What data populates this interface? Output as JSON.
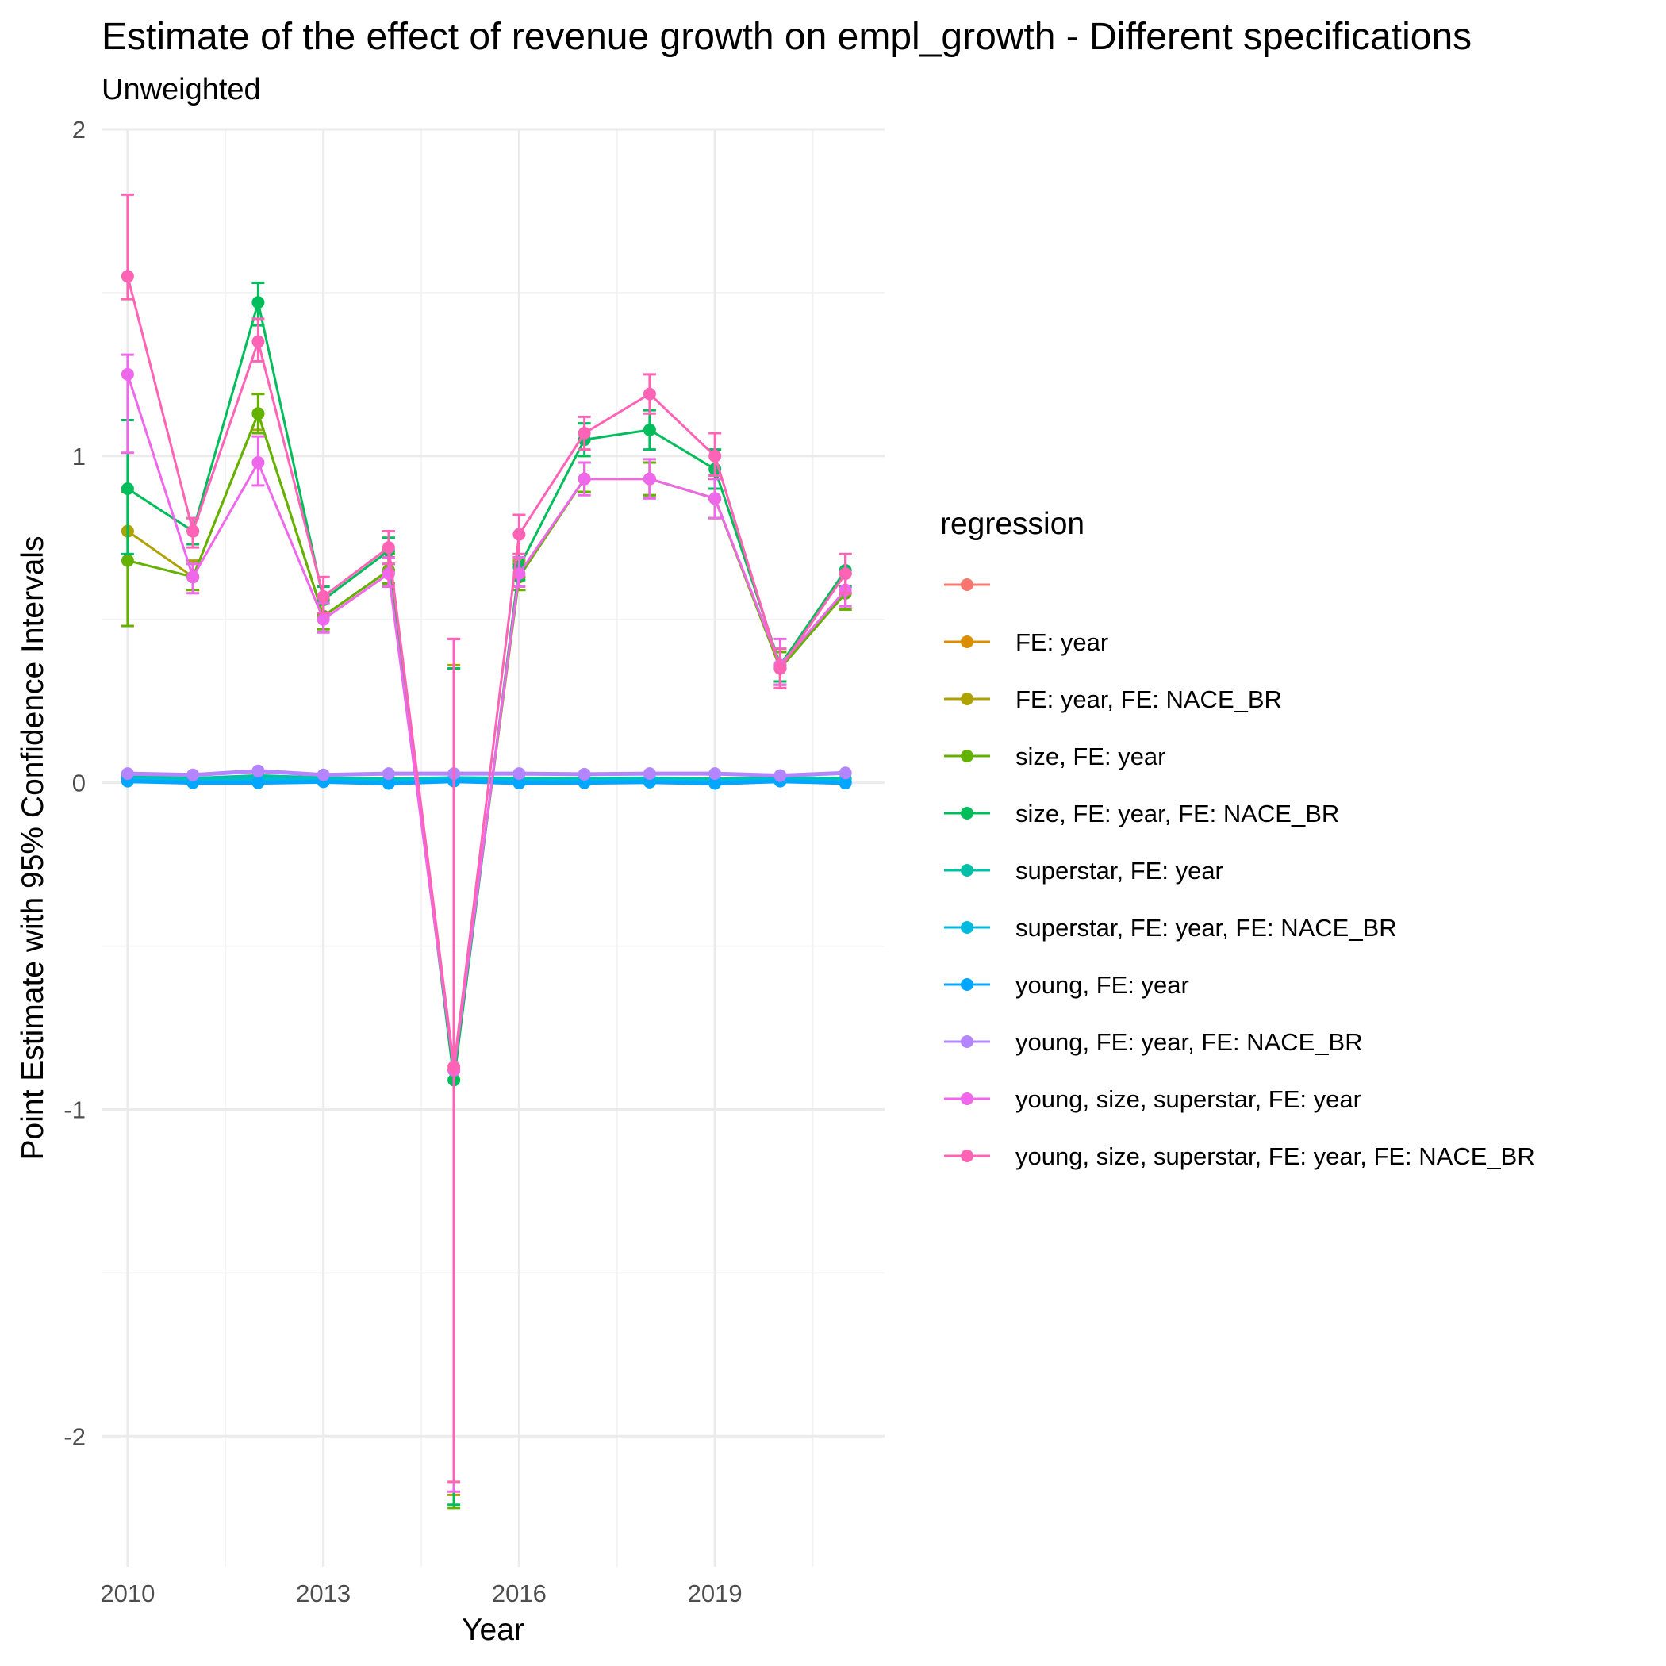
{
  "chart_data": {
    "type": "line",
    "title": "Estimate of the effect of revenue growth on empl_growth - Different specifications",
    "subtitle": "Unweighted",
    "xlabel": "Year",
    "ylabel": "Point Estimate with 95% Confidence Intervals",
    "x": [
      2010,
      2011,
      2012,
      2013,
      2014,
      2015,
      2016,
      2017,
      2018,
      2019,
      2020,
      2021
    ],
    "x_ticks": [
      "2010",
      "2013",
      "2016",
      "2019"
    ],
    "y_ticks": [
      "2",
      "1",
      "0",
      "-1",
      "-2"
    ],
    "xlim": [
      2009.6,
      2021.6
    ],
    "ylim": [
      -2.4,
      2.0
    ],
    "grid": true,
    "legend": {
      "title": "regression",
      "placement": "right"
    },
    "series": [
      {
        "name": "",
        "color": "#F8766D",
        "y": [
          0.01,
          0.003,
          0.008,
          0.005,
          0.002,
          0.006,
          0.003,
          0.004,
          0.005,
          0.002,
          0.008,
          0.003
        ],
        "lo": null,
        "hi": null
      },
      {
        "name": "FE: year",
        "color": "#DB8E00",
        "y": [
          0.011,
          0.004,
          0.009,
          0.006,
          0.003,
          0.007,
          0.004,
          0.005,
          0.006,
          0.003,
          0.009,
          0.004
        ],
        "lo": null,
        "hi": null
      },
      {
        "name": "FE: year, FE: NACE_BR",
        "color": "#AEA200",
        "y": [
          0.77,
          0.63,
          1.13,
          0.51,
          0.65,
          -0.88,
          0.63,
          0.93,
          0.93,
          0.87,
          0.35,
          0.58
        ],
        "lo": [
          null,
          0.59,
          1.08,
          0.47,
          0.61,
          -2.18,
          0.59,
          0.89,
          0.88,
          0.81,
          0.3,
          0.53
        ],
        "hi": [
          null,
          0.68,
          1.19,
          0.56,
          0.7,
          0.36,
          0.68,
          0.98,
          0.98,
          0.93,
          0.4,
          0.64
        ]
      },
      {
        "name": "size, FE: year",
        "color": "#64B200",
        "y": [
          0.68,
          0.63,
          1.13,
          0.51,
          0.65,
          -0.88,
          0.63,
          0.93,
          0.93,
          0.87,
          0.35,
          0.58
        ],
        "lo": [
          0.48,
          0.59,
          1.07,
          0.47,
          0.61,
          -2.22,
          0.59,
          0.89,
          0.88,
          0.81,
          0.3,
          0.53
        ],
        "hi": [
          0.89,
          0.67,
          1.19,
          0.55,
          0.7,
          0.35,
          0.67,
          0.98,
          0.98,
          0.93,
          0.4,
          0.64
        ]
      },
      {
        "name": "size, FE: year, FE: NACE_BR",
        "color": "#00BD5C",
        "y": [
          0.9,
          0.77,
          1.47,
          0.56,
          0.71,
          -0.91,
          0.66,
          1.05,
          1.08,
          0.96,
          0.36,
          0.65
        ],
        "lo": [
          0.7,
          0.73,
          1.4,
          0.52,
          0.67,
          -2.21,
          0.62,
          1.0,
          1.02,
          0.9,
          0.31,
          0.6
        ],
        "hi": [
          1.11,
          0.81,
          1.53,
          0.6,
          0.75,
          0.35,
          0.7,
          1.1,
          1.14,
          1.02,
          0.41,
          0.7
        ]
      },
      {
        "name": "superstar, FE: year",
        "color": "#00C1A7",
        "y": [
          0.02,
          0.012,
          0.02,
          0.014,
          0.01,
          0.014,
          0.012,
          0.012,
          0.013,
          0.01,
          0.014,
          0.012
        ],
        "lo": null,
        "hi": null
      },
      {
        "name": "superstar, FE: year, FE: NACE_BR",
        "color": "#00BADE",
        "y": [
          0.012,
          0.004,
          0.008,
          0.008,
          0.004,
          0.01,
          0.005,
          0.006,
          0.007,
          0.004,
          0.009,
          0.004
        ],
        "lo": null,
        "hi": null
      },
      {
        "name": "young, FE: year",
        "color": "#00A6FF",
        "y": [
          0.005,
          0.0,
          0.0,
          0.003,
          -0.002,
          0.005,
          -0.001,
          0.0,
          0.002,
          -0.002,
          0.005,
          -0.001
        ],
        "lo": null,
        "hi": null
      },
      {
        "name": "young, FE: year, FE: NACE_BR",
        "color": "#B385FF",
        "y": [
          0.028,
          0.024,
          0.036,
          0.024,
          0.028,
          0.028,
          0.028,
          0.026,
          0.028,
          0.028,
          0.022,
          0.03
        ],
        "lo": null,
        "hi": null
      },
      {
        "name": "young, size, superstar, FE: year",
        "color": "#EF67EB",
        "y": [
          1.25,
          0.63,
          0.98,
          0.5,
          0.64,
          -0.88,
          0.64,
          0.93,
          0.93,
          0.87,
          0.36,
          0.59
        ],
        "lo": [
          1.01,
          0.58,
          0.91,
          0.46,
          0.6,
          -2.17,
          0.6,
          0.88,
          0.87,
          0.81,
          0.3,
          0.54
        ],
        "hi": [
          1.31,
          0.67,
          1.06,
          0.55,
          0.69,
          0.44,
          0.69,
          0.98,
          0.99,
          0.93,
          0.44,
          0.64
        ]
      },
      {
        "name": "young, size, superstar, FE: year, FE: NACE_BR",
        "color": "#FF63B6",
        "y": [
          1.55,
          0.77,
          1.35,
          0.57,
          0.72,
          -0.87,
          0.76,
          1.07,
          1.19,
          1.0,
          0.35,
          0.64
        ],
        "lo": [
          1.48,
          0.72,
          1.29,
          0.52,
          0.67,
          -2.14,
          0.7,
          1.02,
          1.13,
          0.94,
          0.29,
          0.58
        ],
        "hi": [
          1.8,
          0.81,
          1.42,
          0.63,
          0.77,
          0.44,
          0.82,
          1.12,
          1.25,
          1.07,
          0.41,
          0.7
        ]
      }
    ]
  }
}
